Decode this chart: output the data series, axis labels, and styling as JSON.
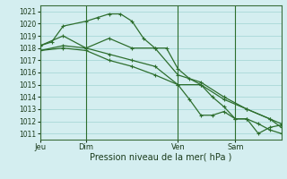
{
  "title": "",
  "xlabel": "Pression niveau de la mer( hPa )",
  "ylabel": "",
  "bg_color": "#d4eef0",
  "grid_color": "#a8d8d8",
  "line_color": "#2d6e2d",
  "ylim": [
    1010.5,
    1021.5
  ],
  "yticks": [
    1011,
    1012,
    1013,
    1014,
    1015,
    1016,
    1017,
    1018,
    1019,
    1020,
    1021
  ],
  "xtick_labels": [
    "Jeu",
    "Dim",
    "Ven",
    "Sam"
  ],
  "xtick_positions": [
    0,
    8,
    24,
    34
  ],
  "xlim": [
    0,
    42
  ],
  "lines": [
    {
      "x": [
        0,
        2,
        4,
        8,
        10,
        12,
        14,
        16,
        18,
        20,
        22,
        24,
        26,
        28,
        30,
        32,
        34,
        36,
        38,
        40,
        42
      ],
      "y": [
        1018.2,
        1018.5,
        1019.8,
        1020.2,
        1020.5,
        1020.8,
        1020.8,
        1020.2,
        1018.8,
        1018.0,
        1018.0,
        1016.3,
        1015.5,
        1015.0,
        1014.0,
        1013.2,
        1012.2,
        1012.2,
        1011.0,
        1011.5,
        1011.7
      ],
      "marker": "+"
    },
    {
      "x": [
        0,
        4,
        8,
        12,
        16,
        20,
        24,
        28,
        32,
        36,
        40,
        42
      ],
      "y": [
        1018.2,
        1019.0,
        1018.0,
        1018.8,
        1018.0,
        1018.0,
        1015.8,
        1015.2,
        1014.0,
        1013.0,
        1012.2,
        1011.8
      ],
      "marker": "+"
    },
    {
      "x": [
        0,
        4,
        8,
        12,
        16,
        20,
        24,
        28,
        32,
        36,
        40,
        42
      ],
      "y": [
        1017.8,
        1018.2,
        1018.0,
        1017.5,
        1017.0,
        1016.5,
        1015.0,
        1015.0,
        1013.8,
        1013.0,
        1012.2,
        1011.5
      ],
      "marker": "+"
    },
    {
      "x": [
        0,
        4,
        8,
        12,
        16,
        20,
        24,
        26,
        28,
        30,
        32,
        34,
        36,
        38,
        40,
        42
      ],
      "y": [
        1017.8,
        1018.0,
        1017.8,
        1017.0,
        1016.5,
        1015.8,
        1015.0,
        1013.8,
        1012.5,
        1012.5,
        1012.8,
        1012.2,
        1012.2,
        1011.8,
        1011.3,
        1011.0
      ],
      "marker": "+"
    }
  ]
}
